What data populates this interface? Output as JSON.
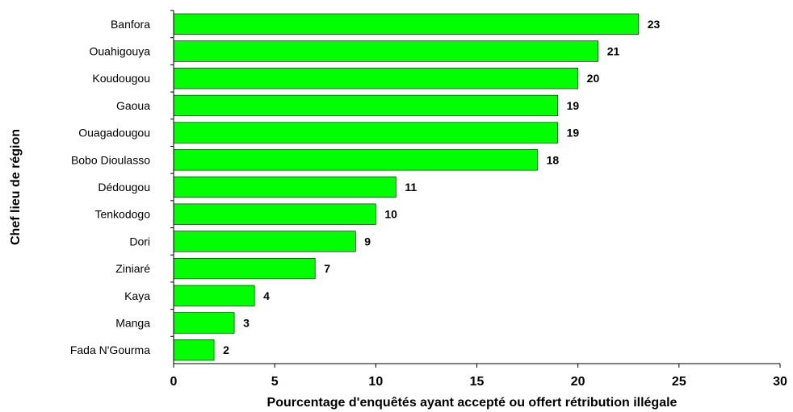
{
  "chart_data": {
    "type": "bar",
    "orientation": "horizontal",
    "categories": [
      "Banfora",
      "Ouahigouya",
      "Koudougou",
      "Gaoua",
      "Ouagadougou",
      "Bobo Dioulasso",
      "Dédougou",
      "Tenkodogo",
      "Dori",
      "Ziniaré",
      "Kaya",
      "Manga",
      "Fada N'Gourma"
    ],
    "values": [
      23,
      21,
      20,
      19,
      19,
      18,
      11,
      10,
      9,
      7,
      4,
      3,
      2
    ],
    "data_labels": [
      "23",
      "21",
      "20",
      "19",
      "19",
      "18",
      "11",
      "10",
      "9",
      "7",
      "4",
      "3",
      "2"
    ],
    "xlabel": "Pourcentage d'enquêtés ayant accepté ou offert rétribution illégale",
    "ylabel": "Chef lieu de région",
    "xlim": [
      0,
      30
    ],
    "xticks": [
      0,
      5,
      10,
      15,
      20,
      25,
      30
    ],
    "xtick_labels": [
      "0",
      "5",
      "10",
      "15",
      "20",
      "25",
      "30"
    ],
    "grid": false,
    "bar_color": "#00ff00"
  }
}
